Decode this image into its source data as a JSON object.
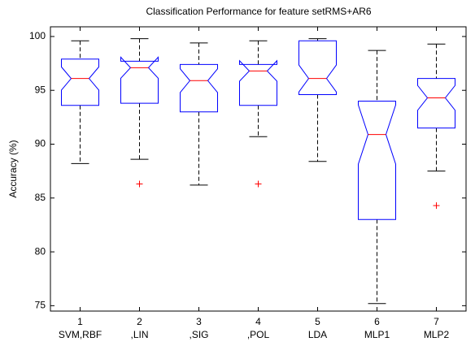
{
  "chart_data": {
    "type": "box",
    "title": "Classification Performance for feature setRMS+AR6",
    "y_label": "Accuracy (%)",
    "xticks": [
      1,
      2,
      3,
      4,
      5,
      6,
      7
    ],
    "categories": [
      "SVM,RBF",
      ",LIN",
      ",SIG",
      ",POL",
      "LDA",
      "MLP1",
      "MLP2"
    ],
    "ylim": [
      74.5,
      100.9
    ],
    "yticks": [
      75,
      80,
      85,
      90,
      95,
      100
    ],
    "box_color": "#0000ff",
    "median_color": "#ff0000",
    "whisker_color": "#000000",
    "outlier_color": "#ff0000",
    "boxes": [
      {
        "min": 88.2,
        "q1": 93.6,
        "median": 96.1,
        "q3": 97.9,
        "max": 99.6,
        "outliers": []
      },
      {
        "min": 88.6,
        "q1": 93.8,
        "median": 97.1,
        "q3": 97.7,
        "max": 99.8,
        "outliers": [
          86.3
        ]
      },
      {
        "min": 86.2,
        "q1": 93.0,
        "median": 95.9,
        "q3": 97.4,
        "max": 99.4,
        "outliers": []
      },
      {
        "min": 90.7,
        "q1": 93.6,
        "median": 96.8,
        "q3": 97.4,
        "max": 99.6,
        "outliers": [
          86.3
        ]
      },
      {
        "min": 88.4,
        "q1": 94.6,
        "median": 96.1,
        "q3": 99.6,
        "max": 99.8,
        "outliers": []
      },
      {
        "min": 75.2,
        "q1": 83.0,
        "median": 90.9,
        "q3": 94.0,
        "max": 98.7,
        "outliers": []
      },
      {
        "min": 87.5,
        "q1": 91.5,
        "median": 94.3,
        "q3": 96.1,
        "max": 99.3,
        "outliers": [
          84.3
        ]
      }
    ]
  }
}
